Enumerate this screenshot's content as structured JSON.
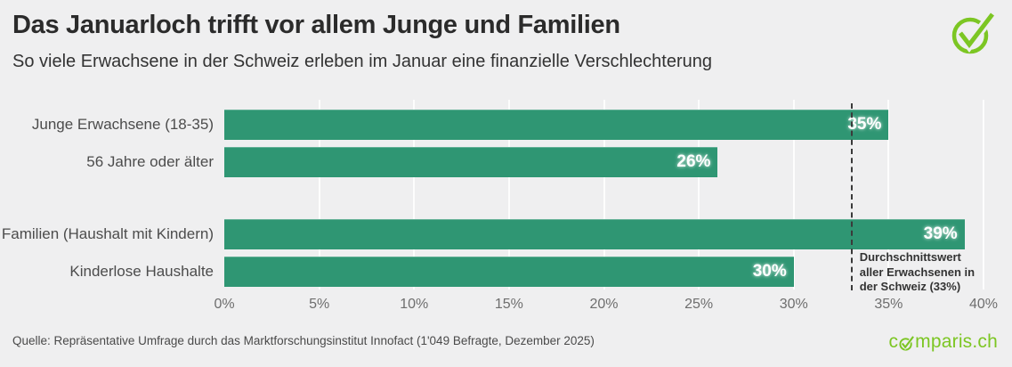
{
  "header": {
    "title": "Das Januarloch trifft vor allem Junge und Familien",
    "subtitle": "So viele Erwachsene in der Schweiz erleben im Januar eine finanzielle Verschlechterung"
  },
  "footer": {
    "source": "Quelle: Repräsentative Umfrage durch das Marktforschungsinstitut Innofact (1'049 Befragte, Dezember 2025)",
    "brand_prefix": "c",
    "brand_suffix": "mparis.ch",
    "brand_icon": "circle-check-icon"
  },
  "colors": {
    "background": "#efeff0",
    "bar": "#2f9673",
    "brand_green": "#7cc623",
    "title_text": "#2b2b2b",
    "tick_text": "#6e6e6e",
    "average_line": "#3a3a3a"
  },
  "chart_data": {
    "type": "bar",
    "orientation": "horizontal",
    "title": "Das Januarloch trifft vor allem Junge und Familien",
    "subtitle": "So viele Erwachsene in der Schweiz erleben im Januar eine finanzielle Verschlechterung",
    "categories": [
      "Junge Erwachsene (18-35)",
      "56 Jahre oder älter",
      "Familien (Haushalt mit Kindern)",
      "Kinderlose Haushalte"
    ],
    "values": [
      35,
      26,
      39,
      30
    ],
    "value_labels": [
      "35%",
      "26%",
      "39%",
      "30%"
    ],
    "groups": [
      [
        0,
        1
      ],
      [
        2,
        3
      ]
    ],
    "unit": "%",
    "xlim": [
      0,
      40
    ],
    "x_tick_values": [
      0,
      5,
      10,
      15,
      20,
      25,
      30,
      35,
      40
    ],
    "x_tick_labels": [
      "0%",
      "5%",
      "10%",
      "15%",
      "20%",
      "25%",
      "30%",
      "35%",
      "40%"
    ],
    "grid": "vertical-white-lines",
    "legend": "none",
    "average": {
      "value": 33,
      "note": "Durchschnittswert\naller Erwachsenen in\nder Schweiz (33%)"
    }
  }
}
